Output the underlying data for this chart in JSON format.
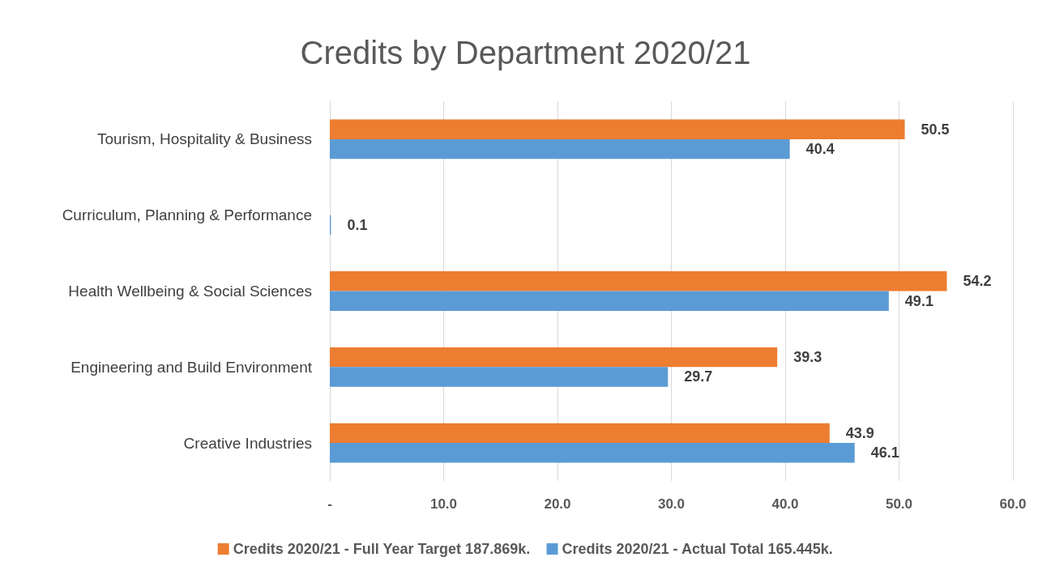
{
  "chart_data": {
    "type": "bar",
    "orientation": "horizontal",
    "title": "Credits by Department 2020/21",
    "categories": [
      "Tourism, Hospitality & Business",
      "Curriculum, Planning & Performance",
      "Health Wellbeing & Social Sciences",
      "Engineering and Build Environment",
      "Creative Industries"
    ],
    "series": [
      {
        "name": "Credits 2020/21 - Full Year Target 187.869k.",
        "color": "#ed7d31",
        "values": [
          50.5,
          null,
          54.2,
          39.3,
          43.9
        ]
      },
      {
        "name": "Credits 2020/21 - Actual Total 165.445k.",
        "color": "#5b9bd5",
        "values": [
          40.4,
          0.1,
          49.1,
          29.7,
          46.1
        ]
      }
    ],
    "xlim": [
      0,
      60
    ],
    "xticks": [
      {
        "value": 0,
        "label": "-"
      },
      {
        "value": 10,
        "label": "10.0"
      },
      {
        "value": 20,
        "label": "20.0"
      },
      {
        "value": 30,
        "label": "30.0"
      },
      {
        "value": 40,
        "label": "40.0"
      },
      {
        "value": 50,
        "label": "50.0"
      },
      {
        "value": 60,
        "label": "60.0"
      }
    ],
    "grid": "x",
    "legend": "bottom",
    "data_labels": true
  }
}
